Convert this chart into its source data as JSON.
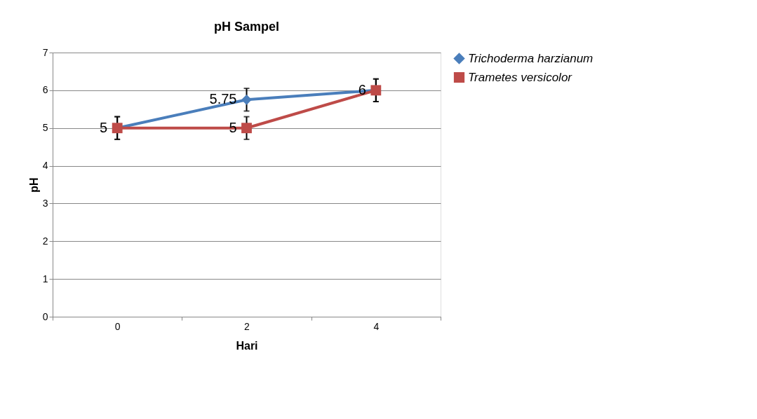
{
  "chart_data": {
    "type": "line",
    "title": "pH Sampel",
    "xlabel": "Hari",
    "ylabel": "pH",
    "categories": [
      "0",
      "2",
      "4"
    ],
    "series": [
      {
        "name": "Trichoderma harzianum",
        "color": "#4a7ebb",
        "marker": "diamond",
        "values": [
          5,
          5.75,
          6
        ],
        "errors": [
          0.3,
          0.3,
          0.3
        ],
        "value_labels": [
          "5",
          "5.75",
          "6"
        ]
      },
      {
        "name": "Trametes versicolor",
        "color": "#be4b48",
        "marker": "square",
        "values": [
          5,
          5,
          6
        ],
        "errors": [
          0.3,
          0.3,
          0.3
        ],
        "value_labels": [
          null,
          "5",
          null
        ]
      }
    ],
    "ylim": [
      0,
      7
    ],
    "yticks": [
      0,
      1,
      2,
      3,
      4,
      5,
      6,
      7
    ],
    "grid": "y",
    "legend": "right"
  }
}
